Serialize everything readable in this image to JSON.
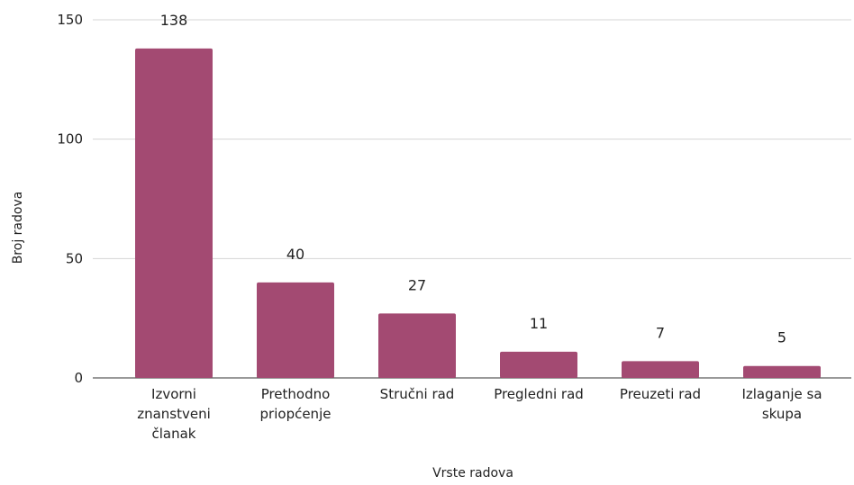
{
  "chart_data": {
    "type": "bar",
    "title": "",
    "xlabel": "Vrste radova",
    "ylabel": "Broj radova",
    "ylim": [
      0,
      150
    ],
    "yticks": [
      0,
      50,
      100,
      150
    ],
    "grid": true,
    "categories": [
      [
        "Izvorni",
        "znanstveni",
        "članak"
      ],
      [
        "Prethodno",
        "priopćenje"
      ],
      [
        "Stručni rad"
      ],
      [
        "Pregledni rad"
      ],
      [
        "Preuzeti rad"
      ],
      [
        "Izlaganje sa",
        "skupa"
      ]
    ],
    "values": [
      138,
      40,
      27,
      11,
      7,
      5
    ],
    "data_labels": [
      "138",
      "40",
      "27",
      "11",
      "7",
      "5"
    ],
    "bar_color": "#a34a72"
  }
}
